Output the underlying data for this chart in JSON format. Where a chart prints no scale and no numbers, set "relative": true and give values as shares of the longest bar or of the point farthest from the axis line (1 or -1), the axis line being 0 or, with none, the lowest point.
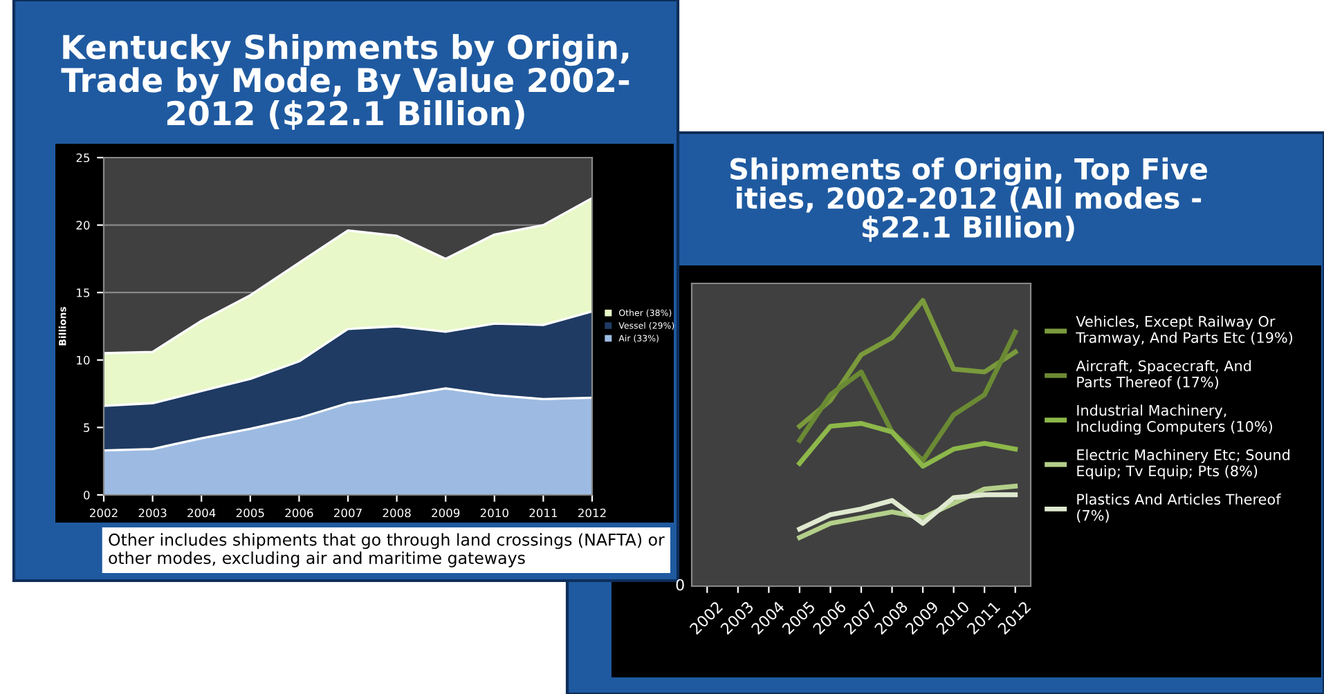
{
  "chart_data": [
    {
      "type": "area",
      "stacked": true,
      "title": "Kentucky Shipments by Origin,\nTrade by Mode, By Value 2002-\n2012 ($22.1 Billion)",
      "ylabel": "Billions",
      "x": [
        2002,
        2003,
        2004,
        2005,
        2006,
        2007,
        2008,
        2009,
        2010,
        2011,
        2012
      ],
      "xlim": [
        2002,
        2012
      ],
      "xticks": [
        2002,
        2003,
        2004,
        2005,
        2006,
        2007,
        2008,
        2009,
        2010,
        2011,
        2012
      ],
      "ylim": [
        0,
        25
      ],
      "yticks": [
        0,
        5,
        10,
        15,
        20,
        25
      ],
      "grid": "y",
      "legend": "right",
      "series": [
        {
          "name": "Air (33%)",
          "color": "#9dbbe2",
          "values": [
            3.3,
            3.4,
            4.2,
            4.9,
            5.7,
            6.8,
            7.3,
            7.9,
            7.4,
            7.1,
            7.2
          ]
        },
        {
          "name": "Vessel (29%)",
          "color": "#1f3b63",
          "values": [
            3.3,
            3.4,
            3.5,
            3.7,
            4.2,
            5.5,
            5.2,
            4.2,
            5.3,
            5.5,
            6.4
          ]
        },
        {
          "name": "Other (38%)",
          "color": "#e8f8c8",
          "values": [
            3.9,
            3.8,
            5.2,
            6.2,
            7.3,
            7.3,
            6.7,
            5.4,
            6.6,
            7.4,
            8.4
          ]
        }
      ],
      "annotations": [
        "Other includes shipments that go through land crossings (NAFTA) or\nother modes, excluding air and maritime gateways"
      ]
    },
    {
      "type": "line",
      "relative": true,
      "title": "Shipments of Origin, Top Five\nities, 2002-2012 (All modes -\n$22.1 Billion)",
      "categories": [
        "2002",
        "2003",
        "2004",
        "2005",
        "2006",
        "2007",
        "2008",
        "2009",
        "2010",
        "2011",
        "2012"
      ],
      "legend": "right",
      "marker": "none",
      "annotations": [
        "0"
      ],
      "series": [
        {
          "name": "Vehicles, Except Railway Or Tramway, And Parts Etc (19%)",
          "color": "#7a9a3c",
          "values": [
            null,
            null,
            null,
            0.56,
            0.65,
            0.81,
            0.87,
            1.0,
            0.76,
            0.75,
            0.82
          ]
        },
        {
          "name": "Aircraft, Spacecraft, And Parts Thereof (17%)",
          "color": "#6b8a34",
          "values": [
            null,
            null,
            null,
            0.51,
            0.67,
            0.75,
            0.54,
            0.44,
            0.6,
            0.67,
            0.89
          ]
        },
        {
          "name": "Industrial Machinery, Including Computers (10%)",
          "color": "#8db84a",
          "values": [
            null,
            null,
            null,
            0.43,
            0.56,
            0.57,
            0.54,
            0.42,
            0.48,
            0.5,
            0.48
          ]
        },
        {
          "name": "Electric Machinery Etc; Sound Equip; Tv Equip; Pts (8%)",
          "color": "#b3cf8a",
          "values": [
            null,
            null,
            null,
            0.17,
            0.22,
            0.24,
            0.26,
            0.24,
            0.29,
            0.34,
            0.35
          ]
        },
        {
          "name": "Plastics And Articles Thereof (7%)",
          "color": "#dfe9cf",
          "values": [
            null,
            null,
            null,
            0.2,
            0.25,
            0.27,
            0.3,
            0.22,
            0.31,
            0.32,
            0.32
          ]
        }
      ]
    }
  ]
}
